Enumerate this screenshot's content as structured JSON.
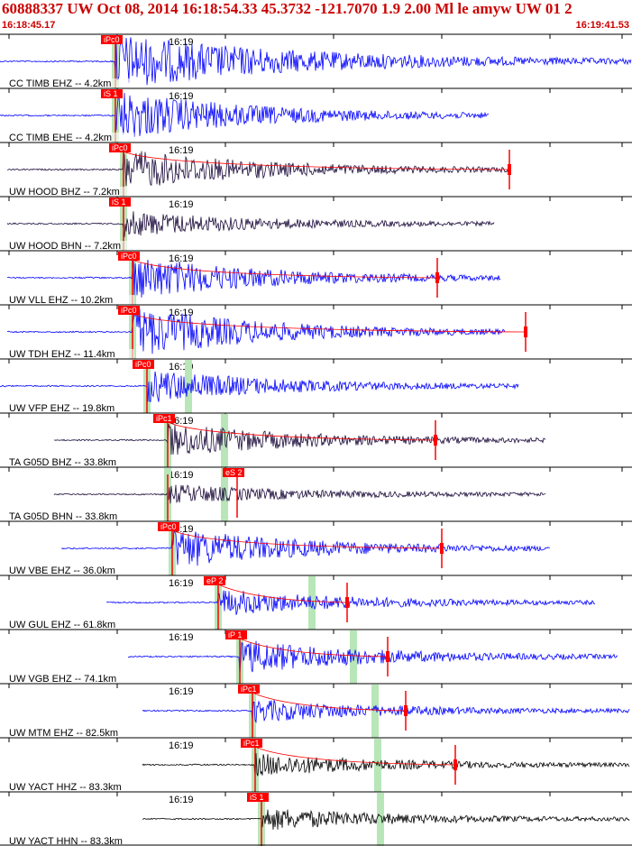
{
  "header": {
    "title": "60888337 UW Oct 08, 2014 16:18:54.33   45.3732 -121.7070  1.9 2.00 Ml le amyw UW 01   2",
    "time_start": "16:18:45.17",
    "time_end": "16:19:41.53"
  },
  "colors": {
    "header_text": "#cc0000",
    "pick_box": "#ff0000",
    "pick_band": "#b8e6b8",
    "coda_line": "#ff0000",
    "blue_trace": "#0000ff",
    "black_trace": "#000000",
    "dark_trace": "#1a0a3a"
  },
  "tick_label": "16:19",
  "traces": [
    {
      "label": "CC TIMB EHZ -- 4.2km",
      "pick": "iPc0",
      "color": "blue"
    },
    {
      "label": "CC TIMB EHE -- 4.2km",
      "pick": "iS 1",
      "color": "blue"
    },
    {
      "label": "UW HOOD BHZ -- 7.2km",
      "pick": "iPc0",
      "color": "dark"
    },
    {
      "label": "UW HOOD BHN -- 7.2km",
      "pick": "iS 1",
      "color": "dark"
    },
    {
      "label": "UW VLL EHZ -- 10.2km",
      "pick": "iPc0",
      "color": "blue"
    },
    {
      "label": "UW TDH EHZ -- 11.4km",
      "pick": "iPc0",
      "color": "blue"
    },
    {
      "label": "UW VFP EHZ -- 19.8km",
      "pick": "iPc0",
      "color": "blue"
    },
    {
      "label": "TA G05D BHZ -- 33.8km",
      "pick": "iPc1",
      "color": "dark"
    },
    {
      "label": "TA G05D BHN -- 33.8km",
      "pick": "eS 2",
      "color": "dark"
    },
    {
      "label": "UW VBE EHZ -- 36.0km",
      "pick": "iPc0",
      "color": "blue"
    },
    {
      "label": "UW GUL EHZ -- 61.8km",
      "pick": "eP 2",
      "color": "blue"
    },
    {
      "label": "UW VGB EHZ -- 74.1km",
      "pick": "iP 1",
      "color": "blue"
    },
    {
      "label": "UW MTM EHZ -- 82.5km",
      "pick": "iPc1",
      "color": "blue"
    },
    {
      "label": "UW YACT HHZ -- 83.3km",
      "pick": "iPc1",
      "color": "black"
    },
    {
      "label": "UW YACT HHN -- 83.3km",
      "pick": "iS 1",
      "color": "black"
    }
  ]
}
